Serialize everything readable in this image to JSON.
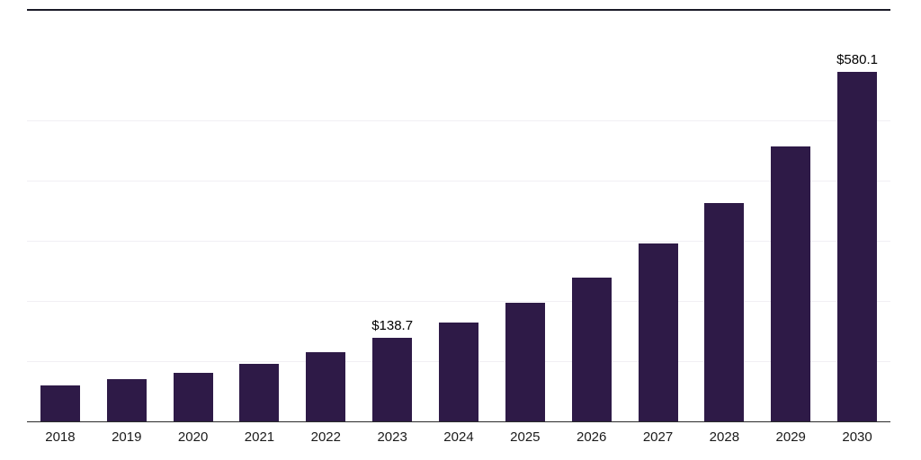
{
  "chart_data": {
    "type": "bar",
    "title": "",
    "xlabel": "",
    "ylabel": "",
    "categories": [
      "2018",
      "2019",
      "2020",
      "2021",
      "2022",
      "2023",
      "2024",
      "2025",
      "2026",
      "2027",
      "2028",
      "2029",
      "2030"
    ],
    "values": [
      60,
      70,
      80,
      95,
      115,
      138.7,
      164,
      197,
      238,
      295,
      362,
      456,
      580.1
    ],
    "data_labels": [
      "",
      "",
      "",
      "",
      "",
      "$138.7",
      "",
      "",
      "",
      "",
      "",
      "",
      "$580.1"
    ],
    "ylim": [
      0,
      686
    ],
    "gridline_interval": 100,
    "legend": "none",
    "grid": "horizontal-faint",
    "colors": {
      "bar": "#2e1a47",
      "top_border": "#1a1a27",
      "baseline": "#2b2b2b",
      "gridline": "#f1eff4",
      "value_label": "#000000",
      "tick_label": "#1a1a1a"
    }
  }
}
